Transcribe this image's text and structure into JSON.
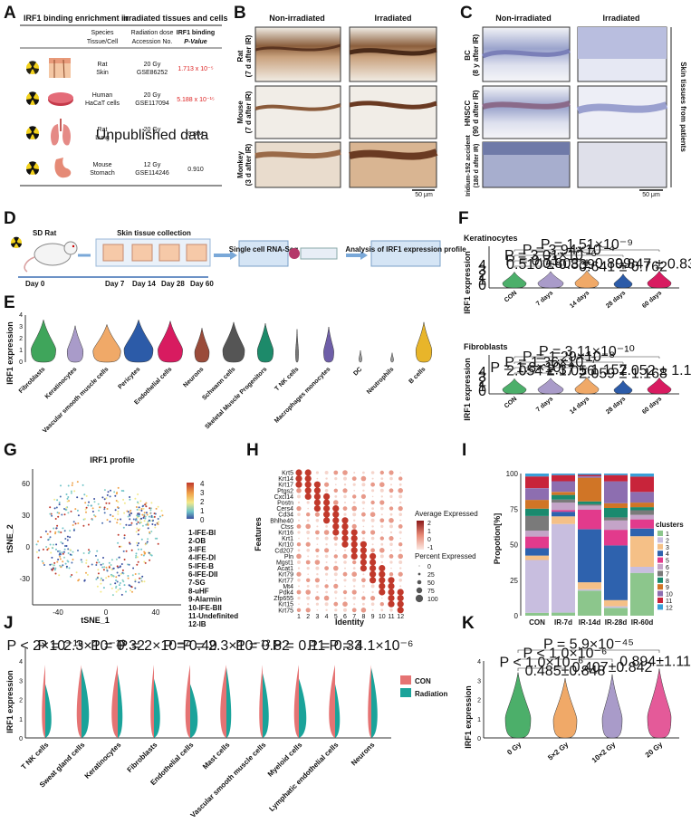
{
  "panels": {
    "A": "A",
    "B": "B",
    "C": "C",
    "D": "D",
    "E": "E",
    "F": "F",
    "G": "G",
    "H": "H",
    "I": "I",
    "J": "J",
    "K": "K"
  },
  "panelA": {
    "title_left": "IRF1  binding enrichment in",
    "title_right": "irradiated tissues and cells",
    "headers": {
      "species": "Species",
      "tissue": "Tissue/Cell",
      "dose": "Radiation dose",
      "accession": "Accession No.",
      "irf1": "IRF1 binding",
      "pval": "P-Value"
    },
    "rows": [
      {
        "species": "Rat",
        "tissue": "Skin",
        "dose": "20 Gy",
        "accession": "GSE86252",
        "pval": "1.713 x 10⁻⁵",
        "highlight": true
      },
      {
        "species": "Human",
        "tissue": "HaCaT cells",
        "dose": "20 Gy",
        "accession": "GSE117094",
        "pval": "5.188 x 10⁻¹⁵",
        "highlight": true
      },
      {
        "species": "Rat",
        "tissue": "Lung",
        "dose": "20 Gy",
        "accession": "Unpublished data",
        "pval": "0.804",
        "highlight": false
      },
      {
        "species": "Mouse",
        "tissue": "Stomach",
        "dose": "12 Gy",
        "accession": "GSE114246",
        "pval": "0.910",
        "highlight": false
      }
    ]
  },
  "panelB": {
    "col1": "Non-irradiated",
    "col2": "Irradiated",
    "rows": [
      {
        "l1": "Rat",
        "l2": "(7 d after IR)"
      },
      {
        "l1": "Mouse",
        "l2": "(7 d after IR)"
      },
      {
        "l1": "Monkey",
        "l2": "(3 d after IR)"
      }
    ],
    "scale": "50 μm"
  },
  "panelC": {
    "col1": "Non-irradiated",
    "col2": "Irradiated",
    "rows": [
      {
        "l1": "BC",
        "l2": "(8 y after IR)"
      },
      {
        "l1": "HNSCC",
        "l2": "(90 d after IR)"
      },
      {
        "l1": "Iridium-192 accident",
        "l2": "(180 d after IR)"
      }
    ],
    "side": "Skin tissues from patients",
    "scale": "50 μm"
  },
  "panelD": {
    "animal": "SD Rat",
    "collection": "Skin tissue collection",
    "days": [
      "Day 0",
      "Day 7",
      "Day 14",
      "Day 28",
      "Day 60"
    ],
    "seq": "Single cell RNA-Seq",
    "analysis": "Analysis of IRF1 expression profile"
  },
  "panelE": {
    "ylabel": "IRF1 expression",
    "ticks": [
      "0",
      "1",
      "2",
      "3",
      "4"
    ],
    "cells": [
      "Fibroblasts",
      "Keratinocytes",
      "Vascular smooth muscle cells",
      "Pericytes",
      "Endothelial cells",
      "Neurons",
      "Schwann cells",
      "Skeletal Muscle Progenitors",
      "T NK cells",
      "Macrophages monocytes",
      "DC",
      "Neutrophils",
      "B cells"
    ],
    "colors": [
      "#3fa55b",
      "#a99bc9",
      "#f0a968",
      "#2c5ba8",
      "#d81b60",
      "#9a4b3a",
      "#555555",
      "#1d8a6a",
      "#777777",
      "#6e5ea8",
      "#999999",
      "#999999",
      "#e8b52a"
    ]
  },
  "chart_data": [
    {
      "type": "violin",
      "panel": "E",
      "ylabel": "IRF1 expression",
      "ylim": [
        0,
        4
      ],
      "categories": [
        "Fibroblasts",
        "Keratinocytes",
        "Vascular smooth muscle cells",
        "Pericytes",
        "Endothelial cells",
        "Neurons",
        "Schwann cells",
        "Skeletal Muscle Progenitors",
        "T NK cells",
        "Macrophages monocytes",
        "DC",
        "Neutrophils",
        "B cells"
      ],
      "height": [
        3.6,
        3.1,
        3.2,
        3.6,
        3.5,
        2.9,
        3.4,
        3.3,
        2.8,
        3.0,
        1.0,
        0.8,
        3.4
      ],
      "width": [
        0.85,
        0.55,
        0.95,
        1.0,
        0.85,
        0.5,
        0.75,
        0.55,
        0.1,
        0.35,
        0.1,
        0.1,
        0.55
      ]
    },
    {
      "type": "violin",
      "panel": "F",
      "title": "Keratinocytes",
      "ylabel": "IRF1 expression",
      "ylim": [
        0,
        4
      ],
      "categories": [
        "CON",
        "7 days",
        "14 days",
        "28 days",
        "60 days"
      ],
      "labels": [
        "",
        "0.510 ± 0.839",
        "0.803 ± 0.899",
        "0.641 ± 0.762",
        "0.847 ± 0.839"
      ],
      "pvalues": [
        "P = 0.71",
        "P = 3.01×10⁻⁶",
        "P = 3.94×10⁻⁴",
        "P = 1.51×10⁻⁹"
      ],
      "colors": [
        "#4caf6a",
        "#a99bc9",
        "#f0a968",
        "#2c5ba8",
        "#d81b60"
      ]
    },
    {
      "type": "violin",
      "panel": "F",
      "title": "Fibroblasts",
      "ylabel": "IRF1 expression",
      "ylim": [
        0,
        4
      ],
      "categories": [
        "CON",
        "7 days",
        "14 days",
        "28 days",
        "60 days"
      ],
      "labels": [
        "",
        "2.054 ± 1.056",
        "2.37 ± 1.157",
        "2.059 ± 1.168",
        "2.052 ± 1.12"
      ],
      "pvalues": [
        "P = 1.8×10⁻⁹",
        "P = 1.36×10⁻⁷",
        "P = 1.29×10⁻⁸",
        "P = 3.11×10⁻¹⁰"
      ],
      "colors": [
        "#4caf6a",
        "#a99bc9",
        "#f0a968",
        "#2c5ba8",
        "#d81b60"
      ]
    },
    {
      "type": "scatter",
      "panel": "G",
      "title": "IRF1 profile",
      "xlabel": "tSNE_1",
      "ylabel": "tSNE_2",
      "xticks": [
        "-40",
        "0",
        "40"
      ],
      "yticks": [
        "60",
        "30",
        "0",
        "-30"
      ],
      "colorbar": [
        "4",
        "3",
        "2",
        "1",
        "0"
      ],
      "clusters": [
        "1-IFE-BI",
        "2-OB",
        "3-IFE",
        "4-IFE-DI",
        "5-IFE-B",
        "6-IFE-DII",
        "7-SG",
        "8-uHF",
        "9-Alarmin",
        "10-IFE-BII",
        "11-Undefinited",
        "12-IB"
      ]
    },
    {
      "type": "dotplot",
      "panel": "H",
      "xlabel": "Identity",
      "ylabel": "Features",
      "features": [
        "Krt5",
        "Krt14",
        "Krt17",
        "Ptgs2",
        "Cxcl14",
        "Postn",
        "Cers4",
        "Cd34",
        "Bhlhe40",
        "Ctss",
        "Krt16",
        "Krt1",
        "Krt10",
        "Cd207",
        "Pln",
        "Mgst1",
        "Acat1",
        "Krt79",
        "Krt77",
        "Mt4",
        "Pdk4",
        "Zfp655",
        "Krt15",
        "Krt75"
      ],
      "identity": [
        "1",
        "2",
        "3",
        "4",
        "5",
        "6",
        "7",
        "8",
        "9",
        "10",
        "11",
        "12"
      ],
      "legend_avg_title": "Average Expressed",
      "legend_avg": [
        "2",
        "1",
        "0",
        "-1"
      ],
      "legend_pct_title": "Percent Expressed",
      "legend_pct": [
        "0",
        "25",
        "50",
        "75",
        "100"
      ]
    },
    {
      "type": "stacked-bar",
      "panel": "I",
      "ylabel": "Propotion[%]",
      "ylim": [
        0,
        100
      ],
      "yticks": [
        "100",
        "75",
        "50",
        "25",
        "0"
      ],
      "categories": [
        "CON",
        "IR-7d",
        "IR-14d",
        "IR-28d",
        "IR-60d"
      ],
      "legend_title": "clusters",
      "cluster_names": [
        "1",
        "2",
        "3",
        "4",
        "5",
        "6",
        "7",
        "8",
        "9",
        "10",
        "11",
        "12"
      ],
      "cluster_colors": [
        "#8cc68c",
        "#c8bedf",
        "#f5c087",
        "#2e62ae",
        "#e23a8c",
        "#c4a4c8",
        "#7a7a7a",
        "#1a8a6e",
        "#d07526",
        "#8d6eb0",
        "#c8243a",
        "#3aa0d8"
      ],
      "values": [
        [
          2,
          36,
          3,
          5,
          8,
          4,
          10,
          5,
          6,
          8,
          8,
          2
        ],
        [
          2,
          58,
          5,
          3,
          1,
          5,
          2,
          3,
          2,
          7,
          4,
          1
        ],
        [
          18,
          1,
          5,
          38,
          14,
          3,
          1,
          2,
          17,
          1,
          1,
          1
        ],
        [
          5,
          1,
          4,
          35,
          10,
          6,
          2,
          6,
          3,
          14,
          4,
          1
        ],
        [
          28,
          4,
          20,
          5,
          6,
          3,
          3,
          2,
          3,
          7,
          10,
          2
        ]
      ]
    },
    {
      "type": "split-violin",
      "panel": "J",
      "ylabel": "IRF1 expression",
      "ylim": [
        0,
        4
      ],
      "categories": [
        "T NK cells",
        "Sweat gland cells",
        "Keratinocytes",
        "Fibroblasts",
        "Endothelial cells",
        "Mast cells",
        "Vascular smooth muscle cells",
        "Myeloid cells",
        "Lymphatic endothelial cells",
        "Neurons"
      ],
      "pvalues": [
        "P < 2×10⁻¹⁶",
        "P = 2.3×10⁻¹³",
        "P = 0.32",
        "P = 2×10⁻⁷",
        "P = 0.49",
        "P = 2.3×10⁻¹²",
        "P = 0.82",
        "P = 0.11",
        "P = 0.33",
        "P = 4.1×10⁻⁶"
      ],
      "series": [
        {
          "name": "CON",
          "color": "#e57373"
        },
        {
          "name": "Radiation",
          "color": "#1aa39a"
        }
      ]
    },
    {
      "type": "violin",
      "panel": "K",
      "ylabel": "IRF1 expression",
      "ylim": [
        0,
        4
      ],
      "categories": [
        "0 Gy",
        "5×2 Gy",
        "10×2 Gy",
        "20 Gy"
      ],
      "labels": [
        "",
        "0.485±0.848",
        "0.407±0.842",
        "0.894±1.117"
      ],
      "pvalues": [
        "P < 1.0×10⁻⁶",
        "P < 1.0×10⁻⁶",
        "P = 5.9×10⁻⁴⁵"
      ],
      "colors": [
        "#4caf6a",
        "#f0a968",
        "#a99bc9",
        "#e45a99"
      ]
    }
  ]
}
